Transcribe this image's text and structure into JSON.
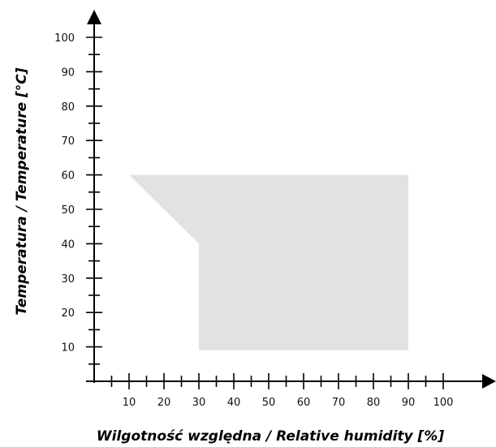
{
  "chart_data": {
    "type": "area",
    "xlabel": "Wilgotność względna / Relative humidity [%]",
    "ylabel": "Temperatura / Temperature [°C]",
    "x_ticks": [
      10,
      20,
      30,
      40,
      50,
      60,
      70,
      80,
      90,
      100
    ],
    "y_ticks": [
      10,
      20,
      30,
      40,
      50,
      60,
      70,
      80,
      90,
      100
    ],
    "xlim": [
      0,
      110
    ],
    "ylim": [
      0,
      105
    ],
    "grid": false,
    "region": {
      "fill": "#e2e2e2",
      "points": [
        {
          "x": 10,
          "y": 60
        },
        {
          "x": 90,
          "y": 60
        },
        {
          "x": 90,
          "y": 9
        },
        {
          "x": 30,
          "y": 9
        },
        {
          "x": 30,
          "y": 40
        }
      ]
    },
    "colors": {
      "axis": "#000000",
      "text": "#111111"
    }
  }
}
